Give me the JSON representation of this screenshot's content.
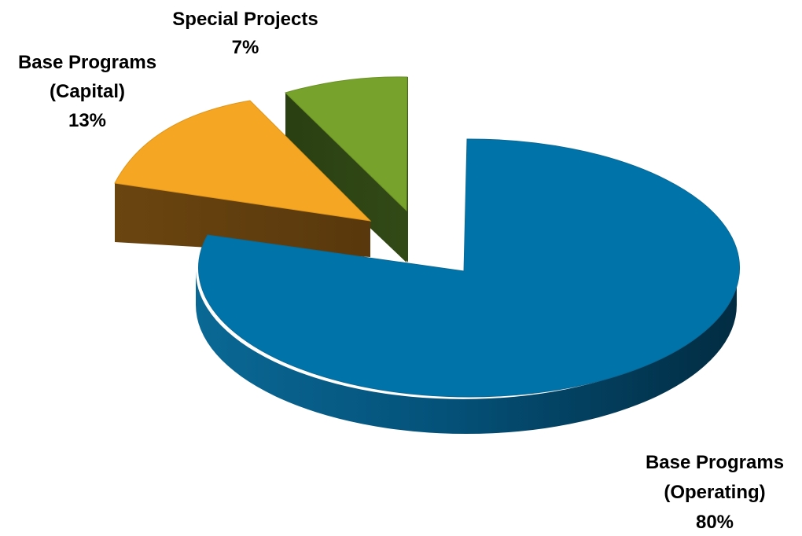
{
  "chart_data": {
    "type": "pie",
    "style": "3d-exploded",
    "title": "",
    "slices": [
      {
        "name_line1": "Base Programs",
        "name_line2": "(Operating)",
        "value": 80,
        "value_label": "80%",
        "color": "#0073a8",
        "dark_color": "#033a55"
      },
      {
        "name_line1": "Base Programs",
        "name_line2": "(Capital)",
        "value": 13,
        "value_label": "13%",
        "color": "#f5a623",
        "dark_color": "#63400f"
      },
      {
        "name_line1": "Special Projects",
        "name_line2": "",
        "value": 7,
        "value_label": "7%",
        "color": "#77a22b",
        "dark_color": "#2d4214"
      }
    ],
    "labels_on_chart": true,
    "legend": "none"
  }
}
